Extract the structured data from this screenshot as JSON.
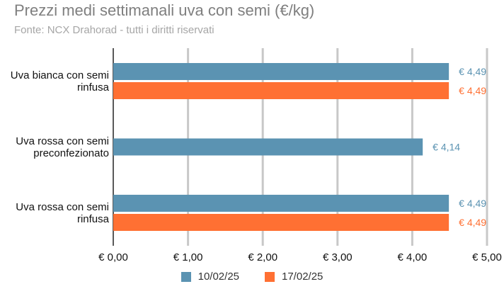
{
  "chart_data": {
    "type": "bar",
    "orientation": "horizontal",
    "title": "Prezzi medi settimanali uva con semi (€/kg)",
    "subtitle": "Fonte: NCX Drahorad - tutti i diritti riservati",
    "categories": [
      [
        "Uva bianca con semi",
        "rinfusa"
      ],
      [
        "Uva rossa con semi",
        "preconfezionato"
      ],
      [
        "Uva rossa con semi",
        "rinfusa"
      ]
    ],
    "series": [
      {
        "name": "10/02/25",
        "color": "#5b93b2",
        "values": [
          4.49,
          4.14,
          4.49
        ],
        "labels": [
          "€ 4,49",
          "€ 4,14",
          "€ 4,49"
        ]
      },
      {
        "name": "17/02/25",
        "color": "#ff7033",
        "values": [
          4.49,
          null,
          4.49
        ],
        "labels": [
          "€ 4,49",
          "",
          "€ 4,49"
        ]
      }
    ],
    "xlim": [
      0,
      5
    ],
    "xticks": [
      0,
      1,
      2,
      3,
      4,
      5
    ],
    "xtick_labels": [
      "€ 0,00",
      "€ 1,00",
      "€ 2,00",
      "€ 3,00",
      "€ 4,00",
      "€ 5,00"
    ],
    "grid": true,
    "legend_position": "bottom"
  }
}
